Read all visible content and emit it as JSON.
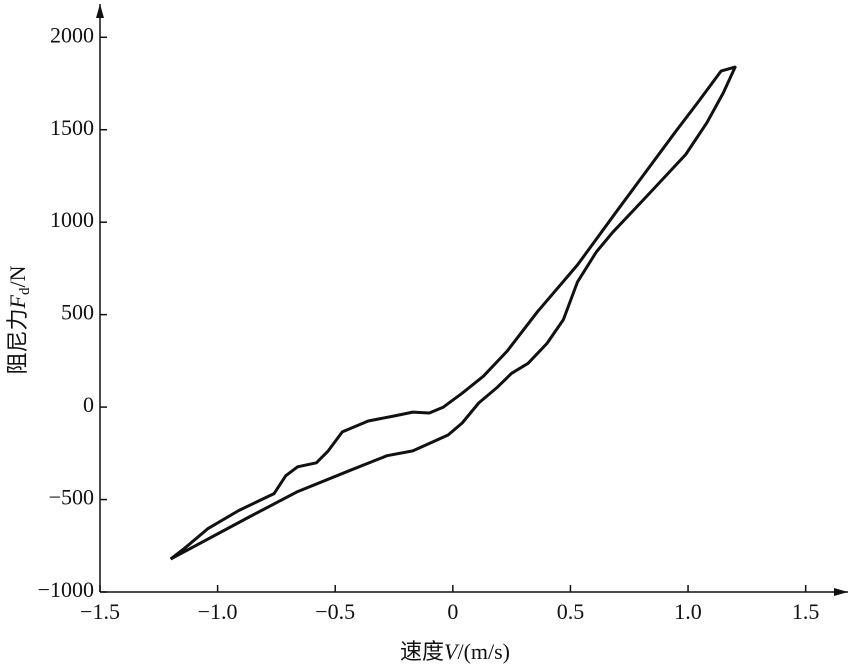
{
  "chart_data": {
    "type": "line",
    "xlabel": [
      "速度",
      "V",
      "/(m/s)"
    ],
    "ylabel": [
      "阻尼力",
      "F",
      "d",
      "/N"
    ],
    "xlim": [
      -1.5,
      1.68
    ],
    "ylim": [
      -1000,
      2180
    ],
    "xticks": [
      {
        "value": -1.5,
        "label": "−1.5"
      },
      {
        "value": -1.0,
        "label": "−1.0"
      },
      {
        "value": -0.5,
        "label": "−0.5"
      },
      0,
      0.5,
      {
        "value": 1.0,
        "label": "1.0"
      },
      1.5
    ],
    "yticks": [
      {
        "value": -1000,
        "label": "−1000"
      },
      {
        "value": -500,
        "label": "−500"
      },
      0,
      500,
      1000,
      1500,
      2000
    ],
    "series": [
      {
        "color": "#111111",
        "x": [
          -1.2,
          -0.87,
          -0.66,
          -0.44,
          -0.28,
          -0.17,
          -0.02,
          0.04,
          0.11,
          0.19,
          0.25,
          0.32,
          0.4,
          0.47,
          0.53,
          0.61,
          0.68,
          0.82,
          0.99,
          1.08,
          1.15,
          1.2,
          1.14,
          1.04,
          0.95,
          0.7,
          0.53,
          0.36,
          0.23,
          0.13,
          0.04,
          -0.04,
          -0.1,
          -0.17,
          -0.25,
          -0.36,
          -0.47,
          -0.53,
          -0.58,
          -0.66,
          -0.71,
          -0.76,
          -0.91,
          -1.04,
          -1.14,
          -1.2
        ],
        "values": [
          -822,
          -597,
          -457,
          -344,
          -263,
          -237,
          -151,
          -86,
          22,
          108,
          183,
          237,
          344,
          473,
          677,
          839,
          946,
          1134,
          1366,
          1538,
          1699,
          1839,
          1817,
          1645,
          1495,
          1065,
          769,
          516,
          301,
          167,
          75,
          0,
          -32,
          -27,
          -48,
          -75,
          -134,
          -237,
          -301,
          -323,
          -371,
          -468,
          -559,
          -656,
          -763,
          -822
        ]
      }
    ]
  }
}
